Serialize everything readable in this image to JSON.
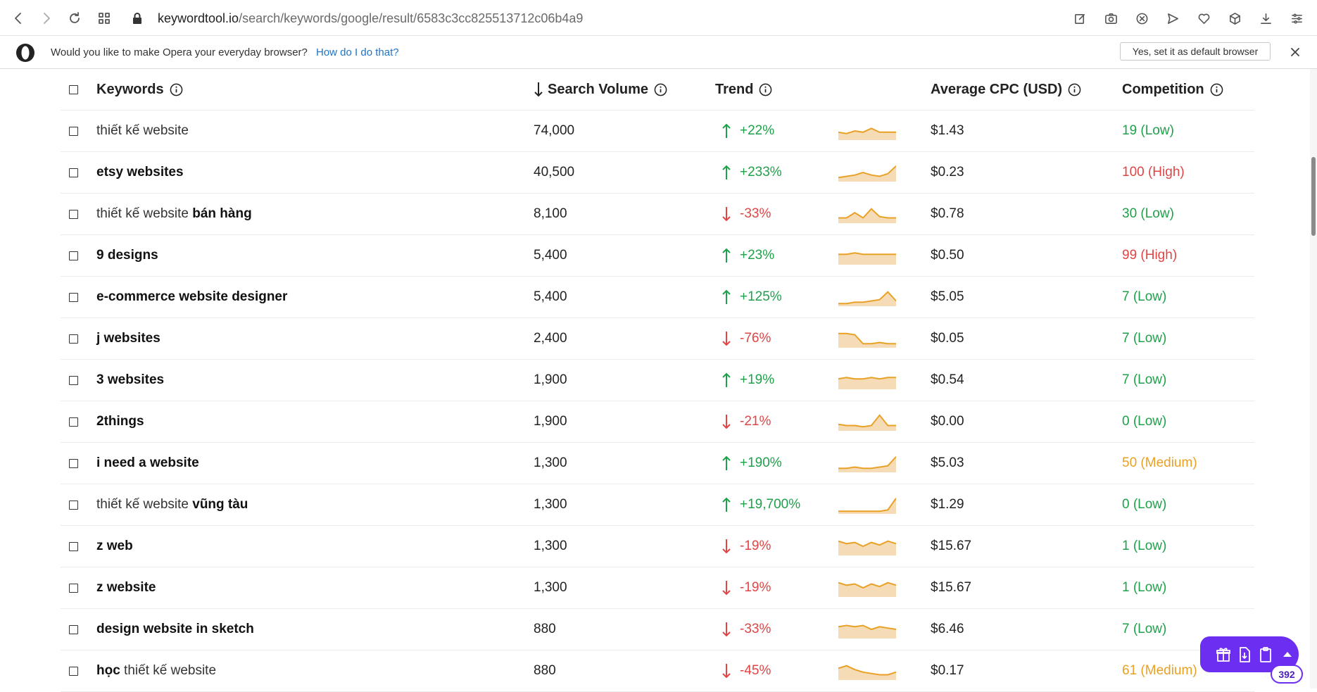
{
  "browser": {
    "url_host": "keywordtool.io",
    "url_path": "/search/keywords/google/result/6583c3cc825513712c06b4a9",
    "toolbar_icons": [
      "back-icon",
      "forward-icon",
      "reload-icon",
      "tabs-grid-icon"
    ],
    "right_icons": [
      "edit-icon",
      "camera-icon",
      "block-icon",
      "send-icon",
      "heart-icon",
      "box-icon",
      "download-icon",
      "menu-icon"
    ]
  },
  "banner": {
    "question": "Would you like to make Opera your everyday browser?",
    "howto_link": "How do I do that?",
    "default_button": "Yes, set it as default browser"
  },
  "table": {
    "headers": {
      "keywords": "Keywords",
      "volume": "Search Volume",
      "trend": "Trend",
      "cpc": "Average CPC (USD)",
      "competition": "Competition"
    },
    "rows": [
      {
        "kw_light": "thiết kế website",
        "kw_bold": "",
        "volume": "74,000",
        "trend": "+22%",
        "trend_dir": "up",
        "cpc": "$1.43",
        "competition": "19 (Low)",
        "comp_level": "low",
        "spark": [
          5,
          4,
          6,
          5,
          8,
          5,
          5,
          5
        ]
      },
      {
        "kw_light": "",
        "kw_bold": "etsy websites",
        "volume": "40,500",
        "trend": "+233%",
        "trend_dir": "up",
        "cpc": "$0.23",
        "competition": "100 (High)",
        "comp_level": "high",
        "spark": [
          2,
          3,
          4,
          6,
          4,
          3,
          5,
          11
        ]
      },
      {
        "kw_light": "thiết kế website ",
        "kw_bold": "bán hàng",
        "volume": "8,100",
        "trend": "-33%",
        "trend_dir": "down",
        "cpc": "$0.78",
        "competition": "30 (Low)",
        "comp_level": "low",
        "spark": [
          3,
          3,
          7,
          3,
          10,
          4,
          3,
          3
        ]
      },
      {
        "kw_light": "",
        "kw_bold": "9 designs",
        "volume": "5,400",
        "trend": "+23%",
        "trend_dir": "up",
        "cpc": "$0.50",
        "competition": "99 (High)",
        "comp_level": "high",
        "spark": [
          7,
          7,
          8,
          7,
          7,
          7,
          7,
          7
        ]
      },
      {
        "kw_light": "",
        "kw_bold": "e-commerce website designer",
        "volume": "5,400",
        "trend": "+125%",
        "trend_dir": "up",
        "cpc": "$5.05",
        "competition": "7 (Low)",
        "comp_level": "low",
        "spark": [
          1,
          1,
          2,
          2,
          3,
          4,
          10,
          3
        ]
      },
      {
        "kw_light": "",
        "kw_bold": "j websites",
        "volume": "2,400",
        "trend": "-76%",
        "trend_dir": "down",
        "cpc": "$0.05",
        "competition": "7 (Low)",
        "comp_level": "low",
        "spark": [
          10,
          10,
          9,
          2,
          2,
          3,
          2,
          2
        ]
      },
      {
        "kw_light": "",
        "kw_bold": "3 websites",
        "volume": "1,900",
        "trend": "+19%",
        "trend_dir": "up",
        "cpc": "$0.54",
        "competition": "7 (Low)",
        "comp_level": "low",
        "spark": [
          7,
          8,
          7,
          7,
          8,
          7,
          8,
          8
        ]
      },
      {
        "kw_light": "",
        "kw_bold": "2things",
        "volume": "1,900",
        "trend": "-21%",
        "trend_dir": "down",
        "cpc": "$0.00",
        "competition": "0 (Low)",
        "comp_level": "low",
        "spark": [
          4,
          3,
          3,
          2,
          3,
          11,
          3,
          3
        ]
      },
      {
        "kw_light": "",
        "kw_bold": "i need a website",
        "volume": "1,300",
        "trend": "+190%",
        "trend_dir": "up",
        "cpc": "$5.03",
        "competition": "50 (Medium)",
        "comp_level": "medium",
        "spark": [
          2,
          2,
          3,
          2,
          2,
          3,
          4,
          11
        ]
      },
      {
        "kw_light": "thiết kế website ",
        "kw_bold": "vũng tàu",
        "volume": "1,300",
        "trend": "+19,700%",
        "trend_dir": "up",
        "cpc": "$1.29",
        "competition": "0 (Low)",
        "comp_level": "low",
        "spark": [
          1,
          1,
          1,
          1,
          1,
          1,
          2,
          11
        ]
      },
      {
        "kw_light": "",
        "kw_bold": "z web",
        "volume": "1,300",
        "trend": "-19%",
        "trend_dir": "down",
        "cpc": "$15.67",
        "competition": "1 (Low)",
        "comp_level": "low",
        "spark": [
          10,
          8,
          9,
          6,
          9,
          7,
          10,
          8
        ]
      },
      {
        "kw_light": "",
        "kw_bold": "z website",
        "volume": "1,300",
        "trend": "-19%",
        "trend_dir": "down",
        "cpc": "$15.67",
        "competition": "1 (Low)",
        "comp_level": "low",
        "spark": [
          10,
          8,
          9,
          6,
          9,
          7,
          10,
          8
        ]
      },
      {
        "kw_light": "",
        "kw_bold": "design website in sketch",
        "volume": "880",
        "trend": "-33%",
        "trend_dir": "down",
        "cpc": "$6.46",
        "competition": "7 (Low)",
        "comp_level": "low",
        "spark": [
          8,
          9,
          8,
          9,
          6,
          8,
          7,
          6
        ]
      },
      {
        "kw_light": "",
        "kw_bold": "học",
        "kw_light_after": " thiết kế website",
        "volume": "880",
        "trend": "-45%",
        "trend_dir": "down",
        "cpc": "$0.17",
        "competition": "61 (Medium)",
        "comp_level": "medium",
        "spark": [
          8,
          10,
          7,
          5,
          4,
          3,
          3,
          5
        ]
      }
    ]
  },
  "widget": {
    "count": "392",
    "icons": [
      "gift-icon",
      "file-download-icon",
      "clipboard-icon"
    ]
  },
  "colors": {
    "up": "#1fa04a",
    "down": "#e04545",
    "medium": "#e8a125",
    "spark_line": "#e8a125",
    "spark_fill": "#f6dcb6",
    "widget": "#6c2ff2"
  }
}
